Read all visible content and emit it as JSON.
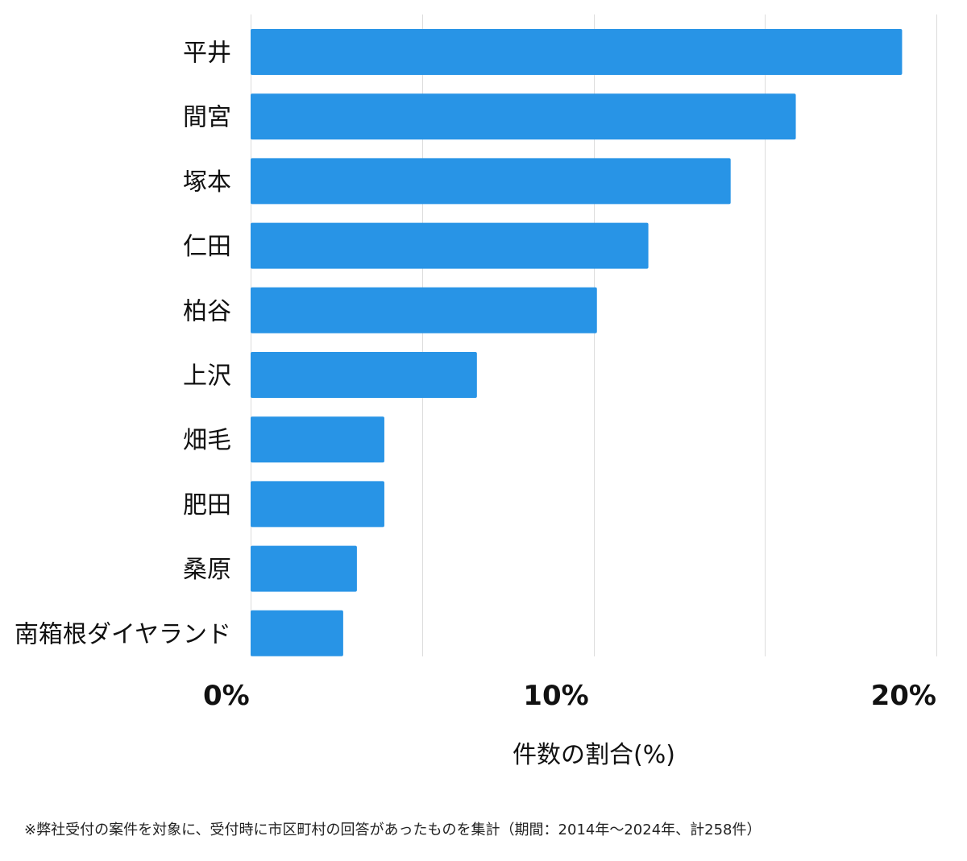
{
  "chart_data": {
    "type": "bar",
    "orientation": "horizontal",
    "categories": [
      "平井",
      "間宮",
      "塚本",
      "仁田",
      "柏谷",
      "上沢",
      "畑毛",
      "肥田",
      "桑原",
      "南箱根ダイヤランド"
    ],
    "values": [
      19.0,
      15.9,
      14.0,
      11.6,
      10.1,
      6.6,
      3.9,
      3.9,
      3.1,
      2.7
    ],
    "xlabel": "件数の割合(%)",
    "xlim": [
      0,
      20
    ],
    "xticks": [
      0,
      10,
      20
    ],
    "xtick_labels": [
      "0%",
      "10%",
      "20%"
    ],
    "grid": true,
    "bar_color": "#2894e6",
    "grid_color": "#dcdcdc"
  },
  "footnote": "※弊社受付の案件を対象に、受付時に市区町村の回答があったものを集計（期間：2014年～2024年、計258件）"
}
